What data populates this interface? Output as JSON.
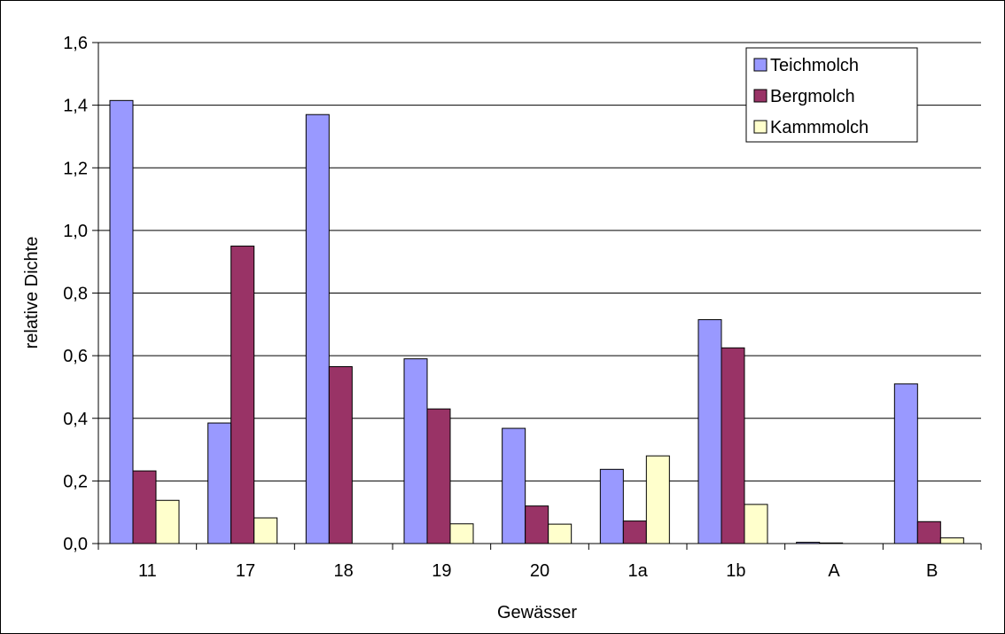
{
  "chart_data": {
    "type": "bar",
    "title": "",
    "xlabel": "Gewässer",
    "ylabel": "relative Dichte",
    "categories": [
      "11",
      "17",
      "18",
      "19",
      "20",
      "1a",
      "1b",
      "A",
      "B"
    ],
    "ylim": [
      0,
      1.6
    ],
    "yticks": [
      "0,0",
      "0,2",
      "0,4",
      "0,6",
      "0,8",
      "1,0",
      "1,2",
      "1,4",
      "1,6"
    ],
    "grid": true,
    "legend_position": "top-right",
    "series": [
      {
        "name": "Teichmolch",
        "color": "#9999ff",
        "values": [
          1.415,
          0.385,
          1.37,
          0.59,
          0.368,
          0.237,
          0.715,
          0.004,
          0.51
        ]
      },
      {
        "name": "Bergmolch",
        "color": "#993366",
        "values": [
          0.232,
          0.95,
          0.565,
          0.43,
          0.12,
          0.072,
          0.625,
          0.002,
          0.07
        ]
      },
      {
        "name": "Kammmolch",
        "color": "#ffffcc",
        "values": [
          0.138,
          0.082,
          0,
          0.063,
          0.062,
          0.28,
          0.125,
          0,
          0.018
        ]
      }
    ]
  }
}
